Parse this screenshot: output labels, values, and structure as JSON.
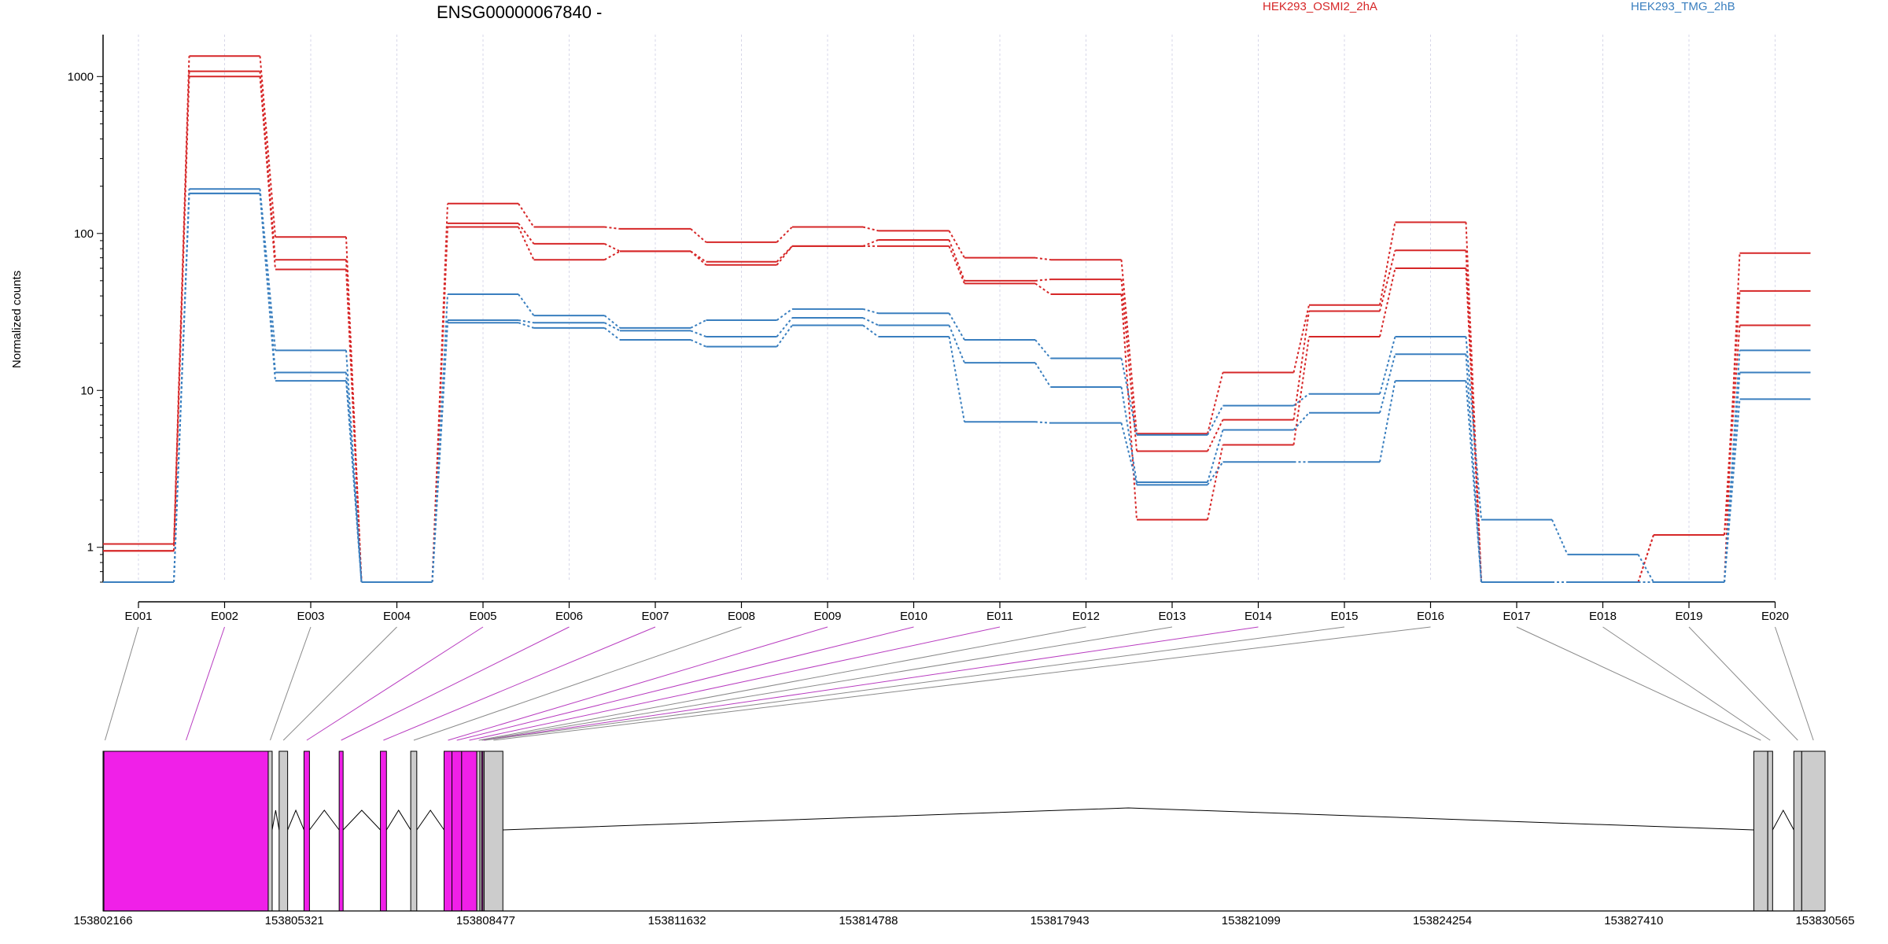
{
  "chart_data": {
    "type": "line",
    "title": "ENSG00000067840 -",
    "ylabel": "Normalized counts",
    "y_scale": "log",
    "ylim": [
      0.6,
      1850
    ],
    "y_ticks": [
      1,
      10,
      100,
      1000
    ],
    "categories": [
      "E001",
      "E002",
      "E003",
      "E004",
      "E005",
      "E006",
      "E007",
      "E008",
      "E009",
      "E010",
      "E011",
      "E012",
      "E013",
      "E014",
      "E015",
      "E016",
      "E017",
      "E018",
      "E019",
      "E020"
    ],
    "legend_position": "top",
    "colors": {
      "HEK293_OSMI2_2hA": "#d62728",
      "HEK293_TMG_2hB": "#3a7fbf",
      "skipped_exon": "#f020e8",
      "exon": "#cccccc"
    },
    "series": [
      {
        "group": "HEK293_OSMI2_2hA",
        "values": [
          1.05,
          1350,
          95,
          0.6,
          155,
          110,
          107,
          88,
          110,
          104,
          70,
          68,
          5.3,
          13.0,
          35,
          118,
          0.6,
          0.6,
          0.6,
          75
        ]
      },
      {
        "group": "HEK293_OSMI2_2hA",
        "values": [
          0.95,
          1080,
          68,
          0.6,
          116,
          86,
          77,
          66,
          83,
          91,
          50,
          51,
          4.1,
          6.5,
          32,
          78,
          0.6,
          0.6,
          1.2,
          43
        ]
      },
      {
        "group": "HEK293_OSMI2_2hA",
        "values": [
          0.95,
          1000,
          59,
          0.6,
          110,
          68,
          77,
          63,
          83,
          83,
          48,
          41,
          1.5,
          4.5,
          22,
          60,
          0.6,
          0.6,
          1.2,
          26
        ]
      },
      {
        "group": "HEK293_TMG_2hB",
        "values": [
          0.6,
          192,
          18,
          0.6,
          41,
          30,
          25,
          28,
          33,
          31,
          21,
          16,
          5.2,
          8.0,
          9.5,
          22,
          1.5,
          0.9,
          0.6,
          18
        ]
      },
      {
        "group": "HEK293_TMG_2hB",
        "values": [
          0.6,
          180,
          13,
          0.6,
          28,
          27,
          24,
          22,
          29,
          26,
          15,
          10.5,
          2.6,
          5.6,
          7.2,
          17,
          0.6,
          0.6,
          0.6,
          13
        ]
      },
      {
        "group": "HEK293_TMG_2hB",
        "values": [
          0.6,
          180,
          11.5,
          0.6,
          27,
          25,
          21,
          19,
          26,
          22,
          6.3,
          6.2,
          2.5,
          3.5,
          3.5,
          11.5,
          0.6,
          0.6,
          0.6,
          8.8
        ]
      }
    ],
    "gene_model": {
      "start": 153802166,
      "end": 153830565,
      "coordinate_ticks": [
        "153802166",
        "153805321",
        "153808477",
        "153811632",
        "153814788",
        "153817943",
        "153821099",
        "153824254",
        "153827410",
        "153830565"
      ],
      "exons": [
        {
          "id": "E001",
          "start": 153802166,
          "end": 153802180,
          "highlight": false
        },
        {
          "id": "E002",
          "start": 153802180,
          "end": 153804890,
          "highlight": true
        },
        {
          "id": "E003",
          "start": 153804890,
          "end": 153804915,
          "highlight": false
        },
        {
          "id": "E004",
          "start": 153805070,
          "end": 153805210,
          "highlight": false
        },
        {
          "id": "E005",
          "start": 153805480,
          "end": 153805570,
          "highlight": true
        },
        {
          "id": "E006",
          "start": 153806060,
          "end": 153806125,
          "highlight": true
        },
        {
          "id": "E007",
          "start": 153806740,
          "end": 153806840,
          "highlight": true
        },
        {
          "id": "E008",
          "start": 153807240,
          "end": 153807340,
          "highlight": false
        },
        {
          "id": "E009",
          "start": 153807790,
          "end": 153807920,
          "highlight": true
        },
        {
          "id": "E010",
          "start": 153807920,
          "end": 153808080,
          "highlight": true
        },
        {
          "id": "E011",
          "start": 153808080,
          "end": 153808330,
          "highlight": true
        },
        {
          "id": "E012",
          "start": 153808330,
          "end": 153808380,
          "highlight": false
        },
        {
          "id": "E013",
          "start": 153808380,
          "end": 153808410,
          "highlight": false
        },
        {
          "id": "E014",
          "start": 153808410,
          "end": 153808430,
          "highlight": true
        },
        {
          "id": "E015",
          "start": 153808430,
          "end": 153808450,
          "highlight": false
        },
        {
          "id": "E016",
          "start": 153808450,
          "end": 153808760,
          "highlight": false
        },
        {
          "id": "E017",
          "start": 153829390,
          "end": 153829620,
          "highlight": false
        },
        {
          "id": "E018",
          "start": 153829620,
          "end": 153829700,
          "highlight": false
        },
        {
          "id": "E019",
          "start": 153830050,
          "end": 153830180,
          "highlight": false
        },
        {
          "id": "E020",
          "start": 153830180,
          "end": 153830565,
          "highlight": false
        }
      ]
    }
  }
}
